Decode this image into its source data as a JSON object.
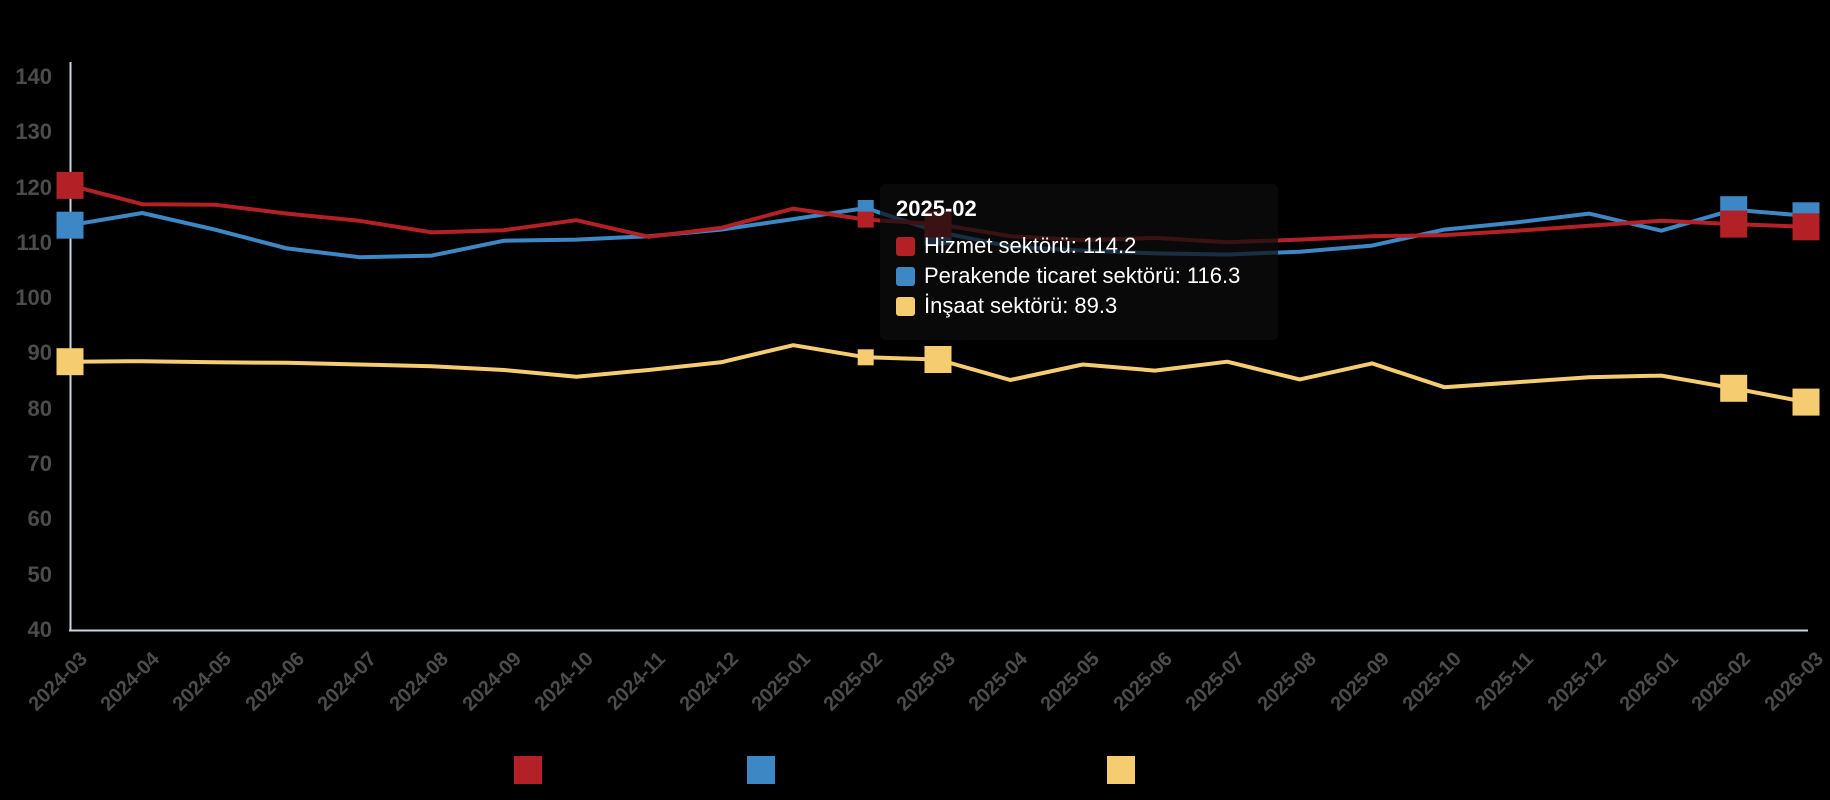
{
  "chart_data": {
    "type": "line",
    "x": [
      "2024-03",
      "2024-04",
      "2024-05",
      "2024-06",
      "2024-07",
      "2024-08",
      "2024-09",
      "2024-10",
      "2024-11",
      "2024-12",
      "2025-01",
      "2025-02",
      "2025-03",
      "2025-04",
      "2025-05",
      "2025-06",
      "2025-07",
      "2025-08",
      "2025-09",
      "2025-10",
      "2025-11",
      "2025-12",
      "2026-01",
      "2026-02",
      "2026-03"
    ],
    "series": [
      {
        "name": "Hizmet sektörü",
        "color": "#b32025",
        "values": [
          120.4,
          117.0,
          116.9,
          115.3,
          114.0,
          111.9,
          112.3,
          114.1,
          111.1,
          112.7,
          116.2,
          114.2,
          113.4,
          111.2,
          110.5,
          110.9,
          110.1,
          110.6,
          111.2,
          111.4,
          112.2,
          113.1,
          114.0,
          113.4,
          112.9
        ]
      },
      {
        "name": "Perakende ticaret sektörü",
        "color": "#3d87c4",
        "values": [
          113.2,
          115.4,
          112.4,
          109.0,
          107.4,
          107.7,
          110.4,
          110.6,
          111.2,
          112.4,
          114.3,
          116.3,
          112.0,
          109.3,
          108.6,
          108.1,
          107.9,
          108.4,
          109.5,
          112.4,
          113.7,
          115.3,
          112.2,
          116.0,
          114.9
        ]
      },
      {
        "name": "İnşaat sektörü",
        "color": "#f6cc70",
        "values": [
          88.5,
          88.6,
          88.4,
          88.3,
          88.0,
          87.7,
          87.0,
          85.8,
          87.0,
          88.4,
          91.5,
          89.3,
          88.9,
          85.2,
          88.0,
          86.9,
          88.5,
          85.3,
          88.2,
          83.9,
          84.8,
          85.7,
          86.0,
          83.7,
          81.2
        ]
      }
    ],
    "ylim": [
      40,
      140
    ],
    "y_ticks": [
      140,
      130,
      120,
      110,
      100,
      90,
      80,
      70,
      60,
      50,
      40
    ],
    "grid": false,
    "background": "#000000",
    "axis_color": "#c9d4e0",
    "tick_label_color": "#4c4c4c",
    "marker_indices": [
      0,
      12,
      23,
      24
    ],
    "hover_index": 11,
    "legend_position": "bottom"
  },
  "tooltip": {
    "title": "2025-02",
    "rows": [
      {
        "label": "Hizmet sektörü",
        "value": "114.2",
        "color": "#b32025"
      },
      {
        "label": "Perakende ticaret sektörü",
        "value": "116.3",
        "color": "#3d87c4"
      },
      {
        "label": "İnşaat sektörü",
        "value": "89.3",
        "color": "#f6cc70"
      }
    ]
  }
}
